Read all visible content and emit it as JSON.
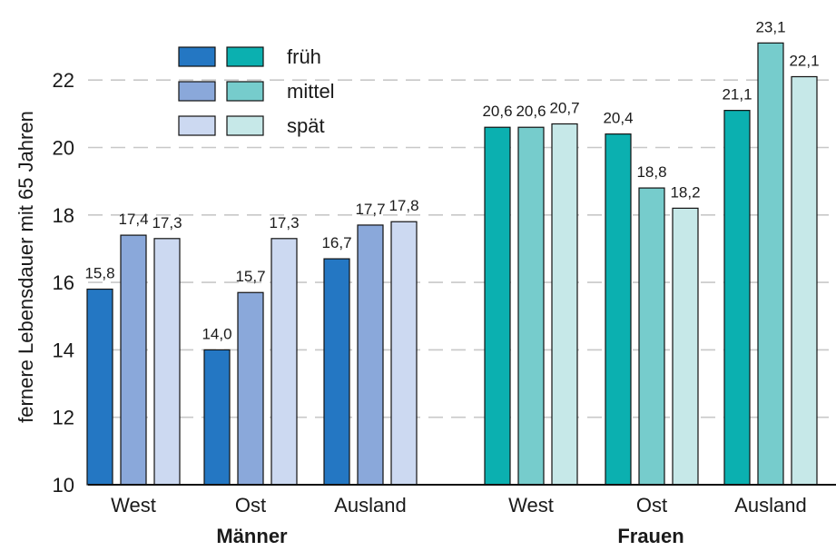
{
  "chart_data": {
    "type": "bar",
    "ylabel": "fernere Lebensdauer mit 65 Jahren",
    "ylim": [
      10,
      23.5
    ],
    "yticks": [
      10,
      12,
      14,
      16,
      18,
      20,
      22
    ],
    "grid": "horizontal dashed",
    "legend": {
      "placement": "top-left",
      "entries": [
        "früh",
        "mittel",
        "spät"
      ]
    },
    "colors": {
      "maenner": [
        "#2477c3",
        "#8aa8da",
        "#ccd9f1"
      ],
      "frauen": [
        "#0bb0b0",
        "#76cccc",
        "#c6e8e8"
      ]
    },
    "groups": [
      {
        "name": "Männer",
        "categories": [
          "West",
          "Ost",
          "Ausland"
        ],
        "series": [
          {
            "name": "früh",
            "values": [
              15.8,
              14.0,
              16.7
            ],
            "labels": [
              "15,8",
              "14,0",
              "16,7"
            ]
          },
          {
            "name": "mittel",
            "values": [
              17.4,
              15.7,
              17.7
            ],
            "labels": [
              "17,4",
              "15,7",
              "17,7"
            ]
          },
          {
            "name": "spät",
            "values": [
              17.3,
              17.3,
              17.8
            ],
            "labels": [
              "17,3",
              "17,3",
              "17,8"
            ]
          }
        ]
      },
      {
        "name": "Frauen",
        "categories": [
          "West",
          "Ost",
          "Ausland"
        ],
        "series": [
          {
            "name": "früh",
            "values": [
              20.6,
              20.4,
              21.1
            ],
            "labels": [
              "20,6",
              "20,4",
              "21,1"
            ]
          },
          {
            "name": "mittel",
            "values": [
              20.6,
              18.8,
              23.1
            ],
            "labels": [
              "20,6",
              "18,8",
              "23,1"
            ]
          },
          {
            "name": "spät",
            "values": [
              20.7,
              18.2,
              22.1
            ],
            "labels": [
              "20,7",
              "18,2",
              "22,1"
            ]
          }
        ]
      }
    ]
  }
}
